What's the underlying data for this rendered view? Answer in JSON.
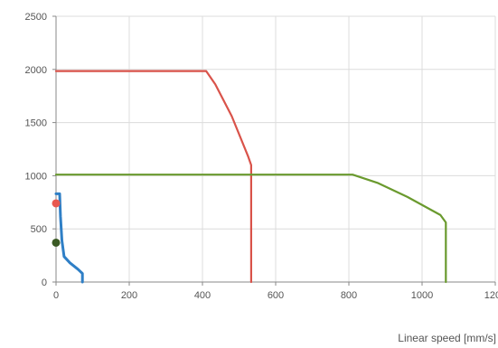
{
  "chart_data": {
    "type": "line",
    "title": "",
    "xlabel": "Linear speed [mm/s]",
    "ylabel": "",
    "xlim": [
      0,
      1200
    ],
    "ylim": [
      0,
      2500
    ],
    "x_ticks": [
      "0",
      "200",
      "400",
      "600",
      "800",
      "1000",
      "1200"
    ],
    "y_ticks": [
      "0",
      "500",
      "1000",
      "1500",
      "2000",
      "2500"
    ],
    "grid": true,
    "legend": "none",
    "series": [
      {
        "color": "#d9534a",
        "x": [
          0,
          410,
          435,
          480,
          525,
          533,
          533
        ],
        "y": [
          1985,
          1985,
          1860,
          1560,
          1180,
          1100,
          0
        ]
      },
      {
        "color": "#6a9a2e",
        "x": [
          0,
          810,
          880,
          960,
          1050,
          1065,
          1065
        ],
        "y": [
          1010,
          1010,
          930,
          800,
          630,
          560,
          0
        ]
      },
      {
        "color": "#2f7fc6",
        "x": [
          0,
          10,
          12,
          16,
          22,
          38,
          60,
          72,
          72
        ],
        "y": [
          830,
          830,
          620,
          390,
          240,
          180,
          120,
          80,
          0
        ]
      }
    ],
    "markers": [
      {
        "x": 0,
        "y": 740,
        "color": "#e8584f"
      },
      {
        "x": 0,
        "y": 370,
        "color": "#3a5a24"
      }
    ]
  }
}
